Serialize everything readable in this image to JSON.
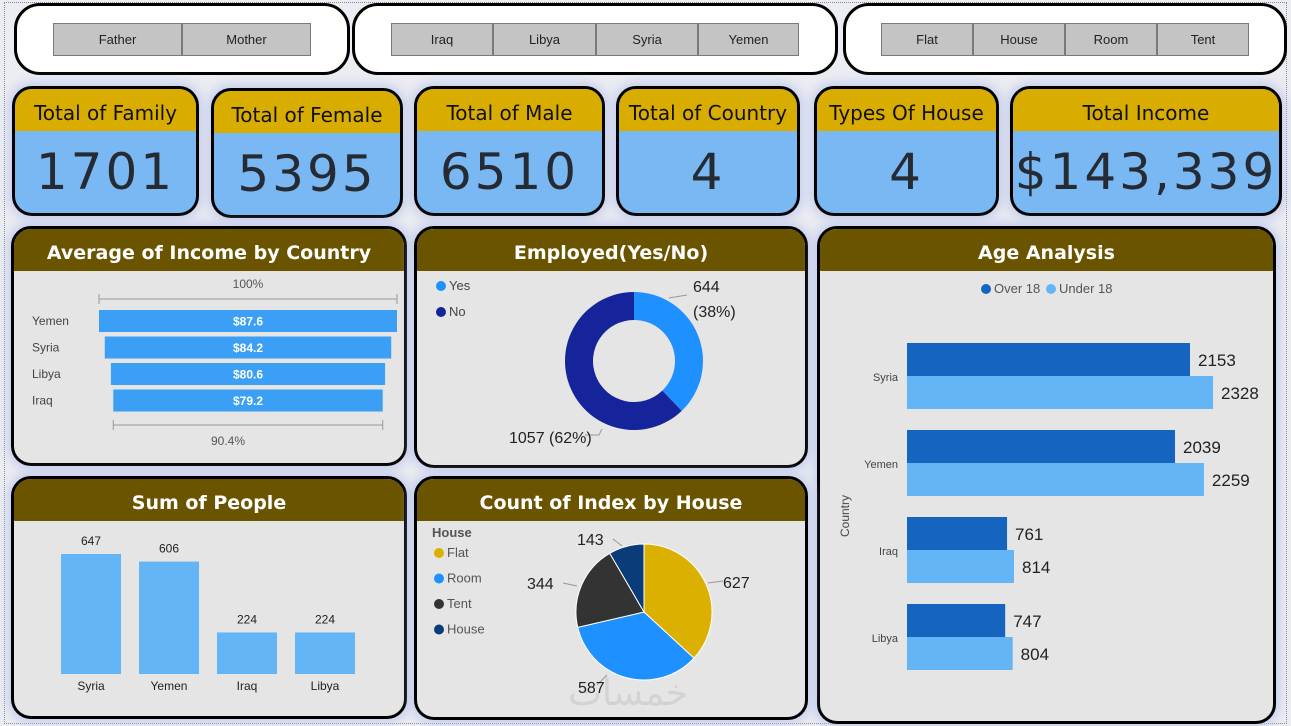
{
  "slicers": {
    "relation": [
      "Father",
      "Mother"
    ],
    "country": [
      "Iraq",
      "Libya",
      "Syria",
      "Yemen"
    ],
    "house": [
      "Flat",
      "House",
      "Room",
      "Tent"
    ]
  },
  "kpis": [
    {
      "label": "Total of Family",
      "value": "1701"
    },
    {
      "label": "Total of Female",
      "value": "5395"
    },
    {
      "label": "Total of Male",
      "value": "6510"
    },
    {
      "label": "Total of Country",
      "value": "4"
    },
    {
      "label": "Types Of House",
      "value": "4"
    },
    {
      "label": "Total Income",
      "value": "$143,339"
    }
  ],
  "watermark": "خمسات",
  "chart_data": [
    {
      "type": "bar",
      "title": "Average of Income by Country",
      "orientation": "horizontal-funnel",
      "categories": [
        "Yemen",
        "Syria",
        "Libya",
        "Iraq"
      ],
      "values": [
        87.6,
        84.2,
        80.6,
        79.2
      ],
      "labels": [
        "$87.6",
        "$84.2",
        "$80.6",
        "$79.2"
      ],
      "top_label": "100%",
      "bottom_label": "90.4%",
      "color": "#3ba0f5"
    },
    {
      "type": "pie",
      "title": "Employed(Yes/No)",
      "variant": "donut",
      "categories": [
        "Yes",
        "No"
      ],
      "values": [
        644,
        1057
      ],
      "labels": [
        "644",
        "(38%)",
        "1057 (62%)"
      ],
      "colors": [
        "#1e90ff",
        "#15249a"
      ]
    },
    {
      "type": "bar",
      "title": "Age Analysis",
      "orientation": "horizontal",
      "ylabel": "Country",
      "categories": [
        "Syria",
        "Yemen",
        "Iraq",
        "Libya"
      ],
      "series": [
        {
          "name": "Over 18",
          "values": [
            2153,
            2039,
            761,
            747
          ],
          "color": "#1565c0"
        },
        {
          "name": "Under 18",
          "values": [
            2328,
            2259,
            814,
            804
          ],
          "color": "#64b5f6"
        }
      ],
      "xlim": [
        0,
        2328
      ]
    },
    {
      "type": "bar",
      "title": "Sum of People",
      "categories": [
        "Syria",
        "Yemen",
        "Iraq",
        "Libya"
      ],
      "values": [
        647,
        606,
        224,
        224
      ],
      "ylim": [
        0,
        647
      ],
      "color": "#64b5f6"
    },
    {
      "type": "pie",
      "title": "Count of Index by House",
      "legend_title": "House",
      "categories": [
        "Flat",
        "Room",
        "Tent",
        "House"
      ],
      "values": [
        627,
        587,
        344,
        143
      ],
      "colors": [
        "#dcb000",
        "#1e90ff",
        "#333333",
        "#0b3c7a"
      ]
    }
  ]
}
